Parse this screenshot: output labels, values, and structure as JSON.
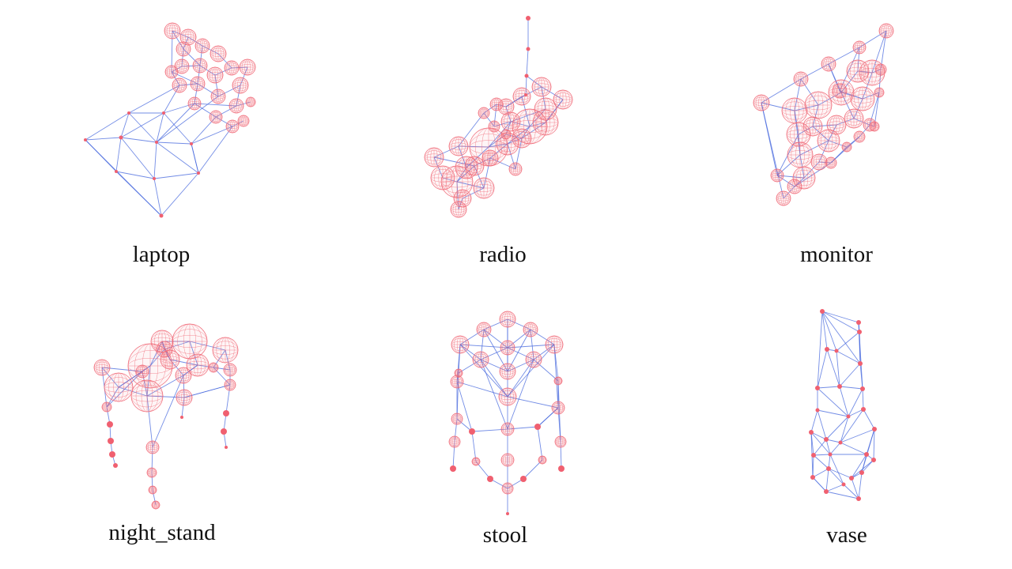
{
  "colors": {
    "node": "#f06070",
    "sphere": "#f06a78",
    "edge": "#4466dd",
    "background": "#ffffff"
  },
  "panels": [
    {
      "label": "laptop"
    },
    {
      "label": "radio"
    },
    {
      "label": "monitor"
    },
    {
      "label": "night_stand"
    },
    {
      "label": "stool"
    },
    {
      "label": "vase"
    }
  ]
}
